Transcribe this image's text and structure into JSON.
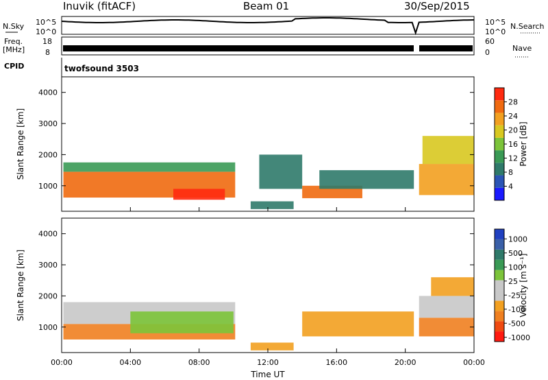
{
  "header": {
    "station": "Inuvik (fitACF)",
    "beam": "Beam 01",
    "date": "30/Sep/2015"
  },
  "summary": {
    "nsky_label": "N.Sky",
    "nsearch_label": "N.Search",
    "noise_ticks": [
      "10^5",
      "10^0"
    ],
    "freq_label_line1": "Freq.",
    "freq_label_line2": "[MHz]",
    "freq_ticks": [
      "18",
      "8"
    ],
    "nave_label": "Nave",
    "nave_ticks": [
      "60",
      "0"
    ],
    "cpid_label": "CPID",
    "cpid_value": "twofsound 3503"
  },
  "x_ticks": [
    "00:00",
    "04:00",
    "08:00",
    "12:00",
    "16:00",
    "20:00",
    "00:00"
  ],
  "x_label": "Time UT",
  "colors": {
    "power_scale": [
      "#1a1aff",
      "#2b55b5",
      "#2f7a6a",
      "#3a9a55",
      "#7cc43a",
      "#d8c820",
      "#f2a020",
      "#f06a10",
      "#ff2a10"
    ],
    "velocity_scale": [
      "#2040c0",
      "#3a60a8",
      "#2f7a6a",
      "#3a9a55",
      "#7cc43a",
      "#c8c8c8",
      "#c8c8c8",
      "#f2a020",
      "#f08020",
      "#f04a10",
      "#ff1a10"
    ]
  },
  "chart_data": [
    {
      "type": "heatmap",
      "panel": "power",
      "xlabel": "Time UT",
      "ylabel": "Slant Range [km]",
      "x_range_hours": [
        0,
        24
      ],
      "ylim": [
        180,
        4500
      ],
      "y_ticks": [
        1000,
        2000,
        3000,
        4000
      ],
      "colorbar_label": "Power [dB]",
      "colorbar_ticks": [
        4,
        8,
        12,
        16,
        20,
        24,
        28
      ],
      "colorbar_range": [
        0,
        32
      ],
      "bands": [
        {
          "t0": 0.1,
          "t1": 10.1,
          "r0": 620,
          "r1": 1450,
          "level": 26
        },
        {
          "t0": 0.1,
          "t1": 10.1,
          "r0": 1450,
          "r1": 1750,
          "level": 14
        },
        {
          "t0": 6.5,
          "t1": 9.5,
          "r0": 550,
          "r1": 900,
          "level": 30
        },
        {
          "t0": 11.0,
          "t1": 13.5,
          "r0": 250,
          "r1": 500,
          "level": 10
        },
        {
          "t0": 11.5,
          "t1": 14.0,
          "r0": 900,
          "r1": 2000,
          "level": 10
        },
        {
          "t0": 14.0,
          "t1": 17.5,
          "r0": 600,
          "r1": 1000,
          "level": 26
        },
        {
          "t0": 15.0,
          "t1": 20.5,
          "r0": 900,
          "r1": 1500,
          "level": 10
        },
        {
          "t0": 20.8,
          "t1": 24.0,
          "r0": 700,
          "r1": 1700,
          "level": 24
        },
        {
          "t0": 21.0,
          "t1": 24.0,
          "r0": 1700,
          "r1": 2600,
          "level": 18
        }
      ]
    },
    {
      "type": "heatmap",
      "panel": "velocity",
      "xlabel": "Time UT",
      "ylabel": "Slant Range [km]",
      "x_range_hours": [
        0,
        24
      ],
      "ylim": [
        180,
        4500
      ],
      "y_ticks": [
        1000,
        2000,
        3000,
        4000
      ],
      "colorbar_label": "Velocity [m s⁻¹]",
      "colorbar_ticks": [
        1000,
        500,
        100,
        25,
        -25,
        -100,
        -500,
        -1000
      ],
      "bands": [
        {
          "t0": 0.1,
          "t1": 10.1,
          "r0": 600,
          "r1": 1100,
          "level": -120
        },
        {
          "t0": 0.1,
          "t1": 10.1,
          "r0": 1100,
          "r1": 1800,
          "level": 0
        },
        {
          "t0": 4.0,
          "t1": 10.0,
          "r0": 800,
          "r1": 1500,
          "level": 60
        },
        {
          "t0": 11.0,
          "t1": 13.5,
          "r0": 250,
          "r1": 500,
          "level": -60
        },
        {
          "t0": 14.0,
          "t1": 20.5,
          "r0": 700,
          "r1": 1500,
          "level": -40
        },
        {
          "t0": 20.8,
          "t1": 24.0,
          "r0": 700,
          "r1": 1300,
          "level": -200
        },
        {
          "t0": 20.8,
          "t1": 24.0,
          "r0": 1300,
          "r1": 2000,
          "level": 0
        },
        {
          "t0": 21.5,
          "t1": 24.0,
          "r0": 2000,
          "r1": 2600,
          "level": -60
        }
      ]
    }
  ]
}
